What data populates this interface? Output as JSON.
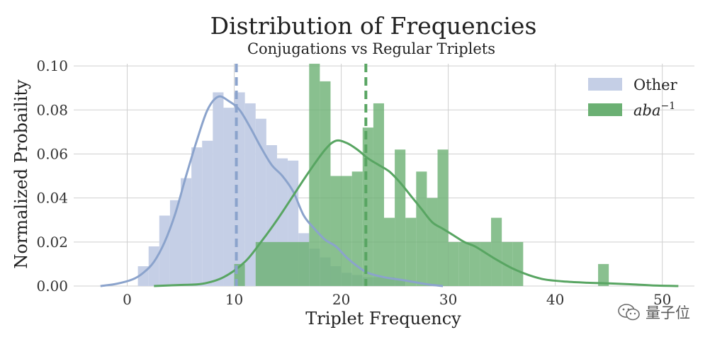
{
  "chart_data": {
    "type": "bar",
    "title": "Distribution of Frequencies",
    "subtitle": "Conjugations vs Regular Triplets",
    "xlabel": "Triplet Frequency",
    "ylabel": "Normalized Probaility",
    "xlim": [
      -5,
      53
    ],
    "ylim": [
      0,
      0.101
    ],
    "x_ticks": [
      0,
      10,
      20,
      30,
      40,
      50
    ],
    "x_tick_labels": [
      "0",
      "10",
      "20",
      "30",
      "40",
      "50"
    ],
    "y_ticks": [
      0.0,
      0.02,
      0.04,
      0.06,
      0.08,
      0.1
    ],
    "y_tick_labels": [
      "0.00",
      "0.02",
      "0.04",
      "0.06",
      "0.08",
      "0.10"
    ],
    "grid": true,
    "legend_position": "top-right",
    "series": [
      {
        "name": "Other",
        "kind": "histogram",
        "color": "#c5cfe6",
        "line_color": "#8ba3cc",
        "bins": [
          {
            "x0": 1,
            "x1": 2,
            "y": 0.009
          },
          {
            "x0": 2,
            "x1": 3,
            "y": 0.018
          },
          {
            "x0": 3,
            "x1": 4,
            "y": 0.032
          },
          {
            "x0": 4,
            "x1": 5,
            "y": 0.039
          },
          {
            "x0": 5,
            "x1": 6,
            "y": 0.049
          },
          {
            "x0": 6,
            "x1": 7,
            "y": 0.063
          },
          {
            "x0": 7,
            "x1": 8,
            "y": 0.066
          },
          {
            "x0": 8,
            "x1": 9,
            "y": 0.088
          },
          {
            "x0": 9,
            "x1": 10,
            "y": 0.081
          },
          {
            "x0": 10,
            "x1": 11,
            "y": 0.088
          },
          {
            "x0": 11,
            "x1": 12,
            "y": 0.083
          },
          {
            "x0": 12,
            "x1": 13,
            "y": 0.076
          },
          {
            "x0": 13,
            "x1": 14,
            "y": 0.064
          },
          {
            "x0": 14,
            "x1": 15,
            "y": 0.058
          },
          {
            "x0": 15,
            "x1": 16,
            "y": 0.057
          },
          {
            "x0": 16,
            "x1": 17,
            "y": 0.024
          },
          {
            "x0": 17,
            "x1": 18,
            "y": 0.017
          },
          {
            "x0": 18,
            "x1": 19,
            "y": 0.013
          },
          {
            "x0": 19,
            "x1": 20,
            "y": 0.009
          },
          {
            "x0": 20,
            "x1": 21,
            "y": 0.006
          },
          {
            "x0": 21,
            "x1": 22,
            "y": 0.005
          },
          {
            "x0": 22,
            "x1": 23,
            "y": 0.004
          },
          {
            "x0": 23,
            "x1": 24,
            "y": 0.004
          },
          {
            "x0": 24,
            "x1": 25,
            "y": 0.004
          },
          {
            "x0": 25,
            "x1": 26,
            "y": 0.003
          }
        ],
        "mean": 10.2,
        "kde": [
          [
            -2.5,
            0.0
          ],
          [
            -1,
            0.001
          ],
          [
            0.5,
            0.003
          ],
          [
            1.5,
            0.006
          ],
          [
            2.5,
            0.011
          ],
          [
            3.5,
            0.02
          ],
          [
            4.5,
            0.033
          ],
          [
            5.5,
            0.05
          ],
          [
            6.5,
            0.066
          ],
          [
            7.5,
            0.08
          ],
          [
            8.5,
            0.086
          ],
          [
            9.5,
            0.084
          ],
          [
            10.5,
            0.08
          ],
          [
            11.5,
            0.072
          ],
          [
            12.5,
            0.063
          ],
          [
            13.5,
            0.055
          ],
          [
            14.5,
            0.05
          ],
          [
            15.5,
            0.043
          ],
          [
            16.5,
            0.032
          ],
          [
            17.5,
            0.026
          ],
          [
            18.5,
            0.021
          ],
          [
            19.5,
            0.018
          ],
          [
            20.5,
            0.013
          ],
          [
            21.5,
            0.009
          ],
          [
            22.5,
            0.006
          ],
          [
            24,
            0.004
          ],
          [
            26,
            0.0025
          ],
          [
            28,
            0.0008
          ],
          [
            29.5,
            0.0
          ]
        ]
      },
      {
        "name": "aba",
        "name_superscript": "−1",
        "kind": "histogram",
        "color": "#6bb073",
        "line_color": "#58a562",
        "bins": [
          {
            "x0": 10,
            "x1": 11,
            "y": 0.01
          },
          {
            "x0": 12,
            "x1": 17,
            "y": 0.02
          },
          {
            "x0": 17,
            "x1": 18,
            "y": 0.101
          },
          {
            "x0": 18,
            "x1": 19,
            "y": 0.093
          },
          {
            "x0": 19,
            "x1": 20,
            "y": 0.05
          },
          {
            "x0": 20,
            "x1": 21,
            "y": 0.05
          },
          {
            "x0": 21,
            "x1": 22,
            "y": 0.052
          },
          {
            "x0": 22,
            "x1": 23,
            "y": 0.072
          },
          {
            "x0": 23,
            "x1": 24,
            "y": 0.083
          },
          {
            "x0": 24,
            "x1": 25,
            "y": 0.031
          },
          {
            "x0": 25,
            "x1": 26,
            "y": 0.062
          },
          {
            "x0": 26,
            "x1": 27,
            "y": 0.031
          },
          {
            "x0": 27,
            "x1": 28,
            "y": 0.052
          },
          {
            "x0": 28,
            "x1": 29,
            "y": 0.04
          },
          {
            "x0": 29,
            "x1": 30,
            "y": 0.062
          },
          {
            "x0": 30,
            "x1": 31,
            "y": 0.02
          },
          {
            "x0": 31,
            "x1": 32,
            "y": 0.02
          },
          {
            "x0": 32,
            "x1": 33,
            "y": 0.02
          },
          {
            "x0": 33,
            "x1": 34,
            "y": 0.02
          },
          {
            "x0": 34,
            "x1": 35,
            "y": 0.031
          },
          {
            "x0": 35,
            "x1": 36,
            "y": 0.02
          },
          {
            "x0": 36,
            "x1": 37,
            "y": 0.02
          },
          {
            "x0": 44,
            "x1": 45,
            "y": 0.01
          }
        ],
        "mean": 22.3,
        "kde": [
          [
            2.5,
            0.0
          ],
          [
            5,
            0.0005
          ],
          [
            7,
            0.001
          ],
          [
            9,
            0.004
          ],
          [
            11,
            0.011
          ],
          [
            12.5,
            0.02
          ],
          [
            14,
            0.03
          ],
          [
            15.5,
            0.041
          ],
          [
            17,
            0.052
          ],
          [
            18.5,
            0.062
          ],
          [
            19.5,
            0.066
          ],
          [
            20.5,
            0.065
          ],
          [
            21.5,
            0.062
          ],
          [
            22.5,
            0.058
          ],
          [
            23.5,
            0.055
          ],
          [
            24.5,
            0.052
          ],
          [
            25.5,
            0.047
          ],
          [
            26.5,
            0.041
          ],
          [
            27.5,
            0.035
          ],
          [
            28.5,
            0.029
          ],
          [
            29.5,
            0.026
          ],
          [
            30.5,
            0.023
          ],
          [
            31.5,
            0.02
          ],
          [
            32.5,
            0.018
          ],
          [
            33.5,
            0.015
          ],
          [
            34.5,
            0.012
          ],
          [
            36,
            0.008
          ],
          [
            37.5,
            0.005
          ],
          [
            39,
            0.003
          ],
          [
            41,
            0.002
          ],
          [
            43,
            0.0015
          ],
          [
            45,
            0.0012
          ],
          [
            47,
            0.0008
          ],
          [
            49,
            0.0003
          ],
          [
            51.5,
            0.0
          ]
        ]
      }
    ]
  },
  "watermark": {
    "text": "量子位",
    "icon": "wechat-icon"
  }
}
